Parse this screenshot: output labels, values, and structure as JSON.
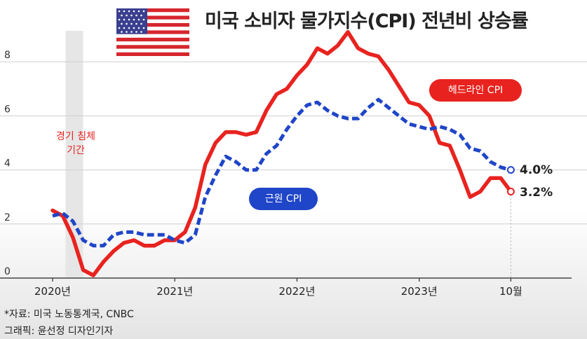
{
  "title": "미국 소비자 물가지수(CPI) 전년비 상승률",
  "source": "*자료: 미국 노동통계국, CNBC",
  "credit": "그래픽: 윤선정 디자인기자",
  "recession_label_line1": "경기 침체",
  "recession_label_line2": "기간",
  "colors": {
    "headline": "#e8231f",
    "core": "#1f45c8",
    "recession_band": "#e6e6e6"
  },
  "chart_data": {
    "type": "line",
    "x_ticks": [
      "2020년",
      "2021년",
      "2022년",
      "2023년",
      "10월"
    ],
    "y_ticks": [
      "0",
      "2",
      "4",
      "6",
      "8"
    ],
    "ylim": [
      0,
      9
    ],
    "grid": true,
    "recession_band": [
      "2020-02",
      "2020-04"
    ],
    "series": [
      {
        "name": "헤드라인 CPI",
        "style": "solid",
        "color": "#e8231f",
        "end_label": "3.2%",
        "points": [
          [
            "2020-01",
            2.5
          ],
          [
            "2020-02",
            2.3
          ],
          [
            "2020-03",
            1.5
          ],
          [
            "2020-04",
            0.3
          ],
          [
            "2020-05",
            0.1
          ],
          [
            "2020-06",
            0.6
          ],
          [
            "2020-07",
            1.0
          ],
          [
            "2020-08",
            1.3
          ],
          [
            "2020-09",
            1.4
          ],
          [
            "2020-10",
            1.2
          ],
          [
            "2020-11",
            1.2
          ],
          [
            "2020-12",
            1.4
          ],
          [
            "2021-01",
            1.4
          ],
          [
            "2021-02",
            1.7
          ],
          [
            "2021-03",
            2.6
          ],
          [
            "2021-04",
            4.2
          ],
          [
            "2021-05",
            5.0
          ],
          [
            "2021-06",
            5.4
          ],
          [
            "2021-07",
            5.4
          ],
          [
            "2021-08",
            5.3
          ],
          [
            "2021-09",
            5.4
          ],
          [
            "2021-10",
            6.2
          ],
          [
            "2021-11",
            6.8
          ],
          [
            "2021-12",
            7.0
          ],
          [
            "2022-01",
            7.5
          ],
          [
            "2022-02",
            7.9
          ],
          [
            "2022-03",
            8.5
          ],
          [
            "2022-04",
            8.3
          ],
          [
            "2022-05",
            8.6
          ],
          [
            "2022-06",
            9.1
          ],
          [
            "2022-07",
            8.5
          ],
          [
            "2022-08",
            8.3
          ],
          [
            "2022-09",
            8.2
          ],
          [
            "2022-10",
            7.7
          ],
          [
            "2022-11",
            7.1
          ],
          [
            "2022-12",
            6.5
          ],
          [
            "2023-01",
            6.4
          ],
          [
            "2023-02",
            6.0
          ],
          [
            "2023-03",
            5.0
          ],
          [
            "2023-04",
            4.9
          ],
          [
            "2023-05",
            4.0
          ],
          [
            "2023-06",
            3.0
          ],
          [
            "2023-07",
            3.2
          ],
          [
            "2023-08",
            3.7
          ],
          [
            "2023-09",
            3.7
          ],
          [
            "2023-10",
            3.2
          ]
        ]
      },
      {
        "name": "근원 CPI",
        "style": "dashed",
        "color": "#1f45c8",
        "end_label": "4.0%",
        "points": [
          [
            "2020-01",
            2.3
          ],
          [
            "2020-02",
            2.4
          ],
          [
            "2020-03",
            2.1
          ],
          [
            "2020-04",
            1.4
          ],
          [
            "2020-05",
            1.2
          ],
          [
            "2020-06",
            1.2
          ],
          [
            "2020-07",
            1.6
          ],
          [
            "2020-08",
            1.7
          ],
          [
            "2020-09",
            1.7
          ],
          [
            "2020-10",
            1.6
          ],
          [
            "2020-11",
            1.6
          ],
          [
            "2020-12",
            1.6
          ],
          [
            "2021-01",
            1.4
          ],
          [
            "2021-02",
            1.3
          ],
          [
            "2021-03",
            1.6
          ],
          [
            "2021-04",
            3.0
          ],
          [
            "2021-05",
            3.8
          ],
          [
            "2021-06",
            4.5
          ],
          [
            "2021-07",
            4.3
          ],
          [
            "2021-08",
            4.0
          ],
          [
            "2021-09",
            4.0
          ],
          [
            "2021-10",
            4.6
          ],
          [
            "2021-11",
            4.9
          ],
          [
            "2021-12",
            5.5
          ],
          [
            "2022-01",
            6.0
          ],
          [
            "2022-02",
            6.4
          ],
          [
            "2022-03",
            6.5
          ],
          [
            "2022-04",
            6.2
          ],
          [
            "2022-05",
            6.0
          ],
          [
            "2022-06",
            5.9
          ],
          [
            "2022-07",
            5.9
          ],
          [
            "2022-08",
            6.3
          ],
          [
            "2022-09",
            6.6
          ],
          [
            "2022-10",
            6.3
          ],
          [
            "2022-11",
            6.0
          ],
          [
            "2022-12",
            5.7
          ],
          [
            "2023-01",
            5.6
          ],
          [
            "2023-02",
            5.5
          ],
          [
            "2023-03",
            5.6
          ],
          [
            "2023-04",
            5.5
          ],
          [
            "2023-05",
            5.3
          ],
          [
            "2023-06",
            4.8
          ],
          [
            "2023-07",
            4.7
          ],
          [
            "2023-08",
            4.3
          ],
          [
            "2023-09",
            4.1
          ],
          [
            "2023-10",
            4.0
          ]
        ]
      }
    ]
  }
}
